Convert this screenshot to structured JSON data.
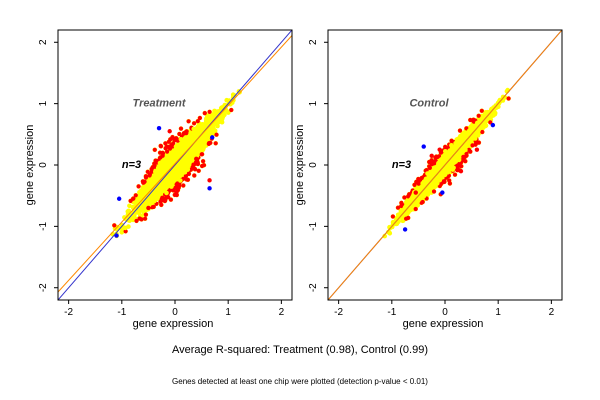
{
  "chart_data": [
    {
      "type": "scatter",
      "title": "Treatment",
      "annotation": "n=3",
      "xlabel": "gene expression",
      "ylabel": "gene expression",
      "xlim": [
        -2.2,
        2.2
      ],
      "ylim": [
        -2.2,
        2.2
      ],
      "xticks": [
        "-2",
        "-1",
        "0",
        "1",
        "2"
      ],
      "yticks": [
        "-2",
        "-1",
        "0",
        "1",
        "2"
      ],
      "spread": 0.12,
      "lines": [
        {
          "slope": 1.0,
          "intercept": 0.0,
          "color": "#3333cc"
        },
        {
          "slope": 0.95,
          "intercept": 0.02,
          "color": "#ff8800"
        }
      ],
      "outliers": [
        {
          "x": -0.3,
          "y": 0.6,
          "color": "#0000ff"
        },
        {
          "x": 0.7,
          "y": 0.45,
          "color": "#0000ff"
        },
        {
          "x": 0.65,
          "y": -0.38,
          "color": "#0000ff"
        },
        {
          "x": -1.05,
          "y": -0.55,
          "color": "#0000ff"
        },
        {
          "x": -1.1,
          "y": -1.15,
          "color": "#0000ff"
        },
        {
          "x": 0.65,
          "y": -0.25,
          "color": "#ff0000"
        },
        {
          "x": -0.5,
          "y": -0.7,
          "color": "#ff0000"
        },
        {
          "x": 0.4,
          "y": 0.1,
          "color": "#ff0000"
        },
        {
          "x": -0.1,
          "y": 0.55,
          "color": "#ff0000"
        }
      ]
    },
    {
      "type": "scatter",
      "title": "Control",
      "annotation": "n=3",
      "xlabel": "gene expression",
      "ylabel": "gene expression",
      "xlim": [
        -2.2,
        2.2
      ],
      "ylim": [
        -2.2,
        2.2
      ],
      "xticks": [
        "-2",
        "-1",
        "0",
        "1",
        "2"
      ],
      "yticks": [
        "-2",
        "-1",
        "0",
        "1",
        "2"
      ],
      "spread": 0.07,
      "lines": [
        {
          "slope": 1.0,
          "intercept": 0.0,
          "color": "#3333cc"
        },
        {
          "slope": 1.0,
          "intercept": 0.0,
          "color": "#ff8800"
        }
      ],
      "outliers": [
        {
          "x": 0.9,
          "y": 0.65,
          "color": "#0000ff"
        },
        {
          "x": -0.4,
          "y": 0.3,
          "color": "#0000ff"
        },
        {
          "x": -0.05,
          "y": -0.45,
          "color": "#0000ff"
        },
        {
          "x": -0.75,
          "y": -1.05,
          "color": "#0000ff"
        },
        {
          "x": -0.1,
          "y": 0.25,
          "color": "#ff0000"
        },
        {
          "x": -0.25,
          "y": 0.15,
          "color": "#ff0000"
        },
        {
          "x": 0.3,
          "y": -0.1,
          "color": "#ff0000"
        },
        {
          "x": 0.6,
          "y": 0.25,
          "color": "#ff0000"
        },
        {
          "x": -0.55,
          "y": -0.45,
          "color": "#ff0000"
        }
      ]
    }
  ],
  "footer": {
    "summary": "Average R-squared: Treatment (0.98), Control (0.99)",
    "note": "Genes detected at least one chip were plotted (detection p-value < 0.01)"
  },
  "colors": {
    "bulk_points": "#ffff00",
    "edge_points": "#ff0000",
    "outlier_points": "#0000ff"
  }
}
